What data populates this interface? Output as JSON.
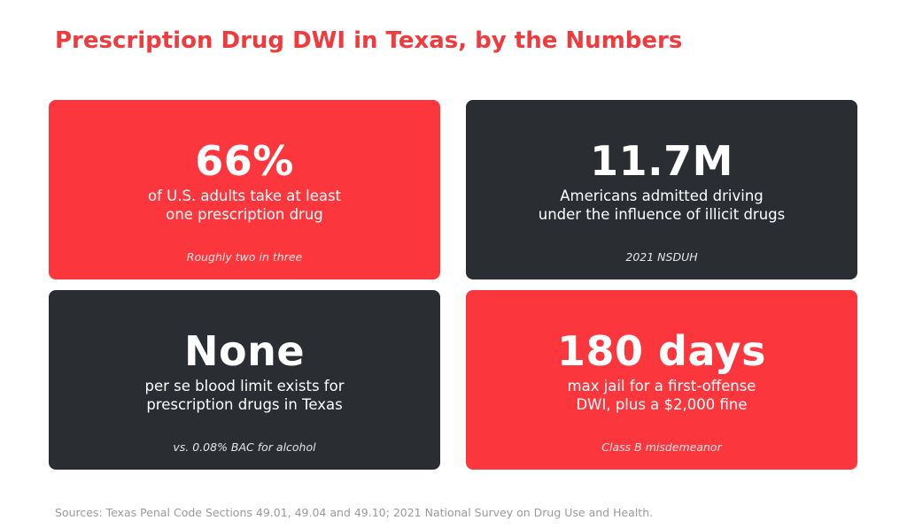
{
  "title": "Prescription Drug DWI in Texas, by the Numbers",
  "colors": {
    "accent_red": "#fb373d",
    "title_red": "#ef3b3e",
    "dark_card": "#2a2d31",
    "background": "#ffffff",
    "sources_gray": "#9a9a9a"
  },
  "cards": [
    {
      "stat": "66%",
      "description": "of U.S. adults take at least one prescription drug",
      "note": "Roughly two in three",
      "theme": "red"
    },
    {
      "stat": "11.7M",
      "description": "Americans admitted driving under the influence of illicit drugs",
      "note": "2021 NSDUH",
      "theme": "dark"
    },
    {
      "stat": "None",
      "description": "per se blood limit exists for prescription drugs in Texas",
      "note": "vs. 0.08% BAC for alcohol",
      "theme": "dark"
    },
    {
      "stat": "180 days",
      "description": "max jail for a first-offense DWI, plus a $2,000 fine",
      "note": "Class B misdemeanor",
      "theme": "red"
    }
  ],
  "sources": "Sources: Texas Penal Code Sections 49.01, 49.04 and 49.10; 2021 National Survey on Drug Use and Health."
}
